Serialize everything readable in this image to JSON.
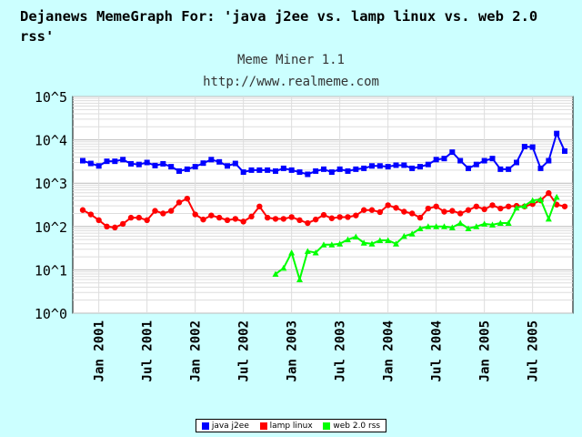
{
  "title": "Dejanews MemeGraph For: 'java j2ee vs. lamp linux vs. web 2.0 rss'",
  "subtitle": "Meme Miner 1.1",
  "url": "http://www.realmeme.com",
  "chart_data": {
    "type": "line",
    "yscale": "log",
    "ylim": [
      "10^0",
      "10^5"
    ],
    "yticks": [
      "10^0",
      "10^1",
      "10^2",
      "10^3",
      "10^4",
      "10^5"
    ],
    "xticks": [
      "Jan 2001",
      "Jul 2001",
      "Jan 2002",
      "Jul 2002",
      "Jan 2003",
      "Jul 2003",
      "Jan 2004",
      "Jul 2004",
      "Jan 2005",
      "Jul 2005"
    ],
    "grid": true,
    "legend_position": "bottom",
    "x": [
      "2000-11",
      "2000-12",
      "2001-01",
      "2001-02",
      "2001-03",
      "2001-04",
      "2001-05",
      "2001-06",
      "2001-07",
      "2001-08",
      "2001-09",
      "2001-10",
      "2001-11",
      "2001-12",
      "2002-01",
      "2002-02",
      "2002-03",
      "2002-04",
      "2002-05",
      "2002-06",
      "2002-07",
      "2002-08",
      "2002-09",
      "2002-10",
      "2002-11",
      "2002-12",
      "2003-01",
      "2003-02",
      "2003-03",
      "2003-04",
      "2003-05",
      "2003-06",
      "2003-07",
      "2003-08",
      "2003-09",
      "2003-10",
      "2003-11",
      "2003-12",
      "2004-01",
      "2004-02",
      "2004-03",
      "2004-04",
      "2004-05",
      "2004-06",
      "2004-07",
      "2004-08",
      "2004-09",
      "2004-10",
      "2004-11",
      "2004-12",
      "2005-01",
      "2005-02",
      "2005-03",
      "2005-04",
      "2005-05",
      "2005-06",
      "2005-07",
      "2005-08",
      "2005-09",
      "2005-10",
      "2005-11"
    ],
    "series": [
      {
        "name": "java j2ee",
        "color": "#0000ff",
        "marker": "square",
        "values": [
          3300,
          2850,
          2500,
          3200,
          3200,
          3500,
          2800,
          2700,
          3000,
          2550,
          2800,
          2400,
          1900,
          2100,
          2400,
          2900,
          3500,
          3100,
          2500,
          2850,
          1800,
          2000,
          2000,
          2000,
          1900,
          2200,
          2000,
          1800,
          1600,
          1900,
          2100,
          1800,
          2100,
          1900,
          2100,
          2200,
          2500,
          2500,
          2400,
          2600,
          2600,
          2200,
          2400,
          2700,
          3500,
          3700,
          5200,
          3300,
          2200,
          2700,
          3300,
          3700,
          2100,
          2100,
          3000,
          7000,
          6800,
          2200,
          3300,
          14000,
          5500
        ]
      },
      {
        "name": "lamp linux",
        "color": "#ff0000",
        "marker": "circle",
        "values": [
          240,
          190,
          140,
          100,
          95,
          115,
          160,
          160,
          140,
          230,
          200,
          230,
          360,
          440,
          190,
          145,
          180,
          160,
          140,
          150,
          130,
          170,
          290,
          160,
          150,
          150,
          165,
          140,
          120,
          145,
          185,
          155,
          165,
          165,
          180,
          240,
          240,
          215,
          310,
          270,
          220,
          200,
          160,
          260,
          290,
          220,
          230,
          200,
          240,
          290,
          250,
          310,
          260,
          290,
          300,
          290,
          330,
          400,
          590,
          320,
          290
        ]
      },
      {
        "name": "web 2.0 rss",
        "color": "#00ff00",
        "marker": "triangle",
        "values": [
          null,
          null,
          null,
          null,
          null,
          null,
          null,
          null,
          null,
          null,
          null,
          null,
          null,
          null,
          null,
          null,
          null,
          null,
          null,
          null,
          null,
          null,
          null,
          null,
          8,
          11,
          25,
          6,
          27,
          25,
          38,
          38,
          40,
          50,
          58,
          42,
          40,
          48,
          48,
          40,
          60,
          68,
          90,
          100,
          100,
          100,
          95,
          120,
          90,
          100,
          115,
          110,
          120,
          120,
          270,
          300,
          400,
          420,
          150,
          480,
          null
        ]
      }
    ]
  },
  "legend": {
    "items": [
      "java j2ee",
      "lamp linux",
      "web 2.0 rss"
    ]
  }
}
